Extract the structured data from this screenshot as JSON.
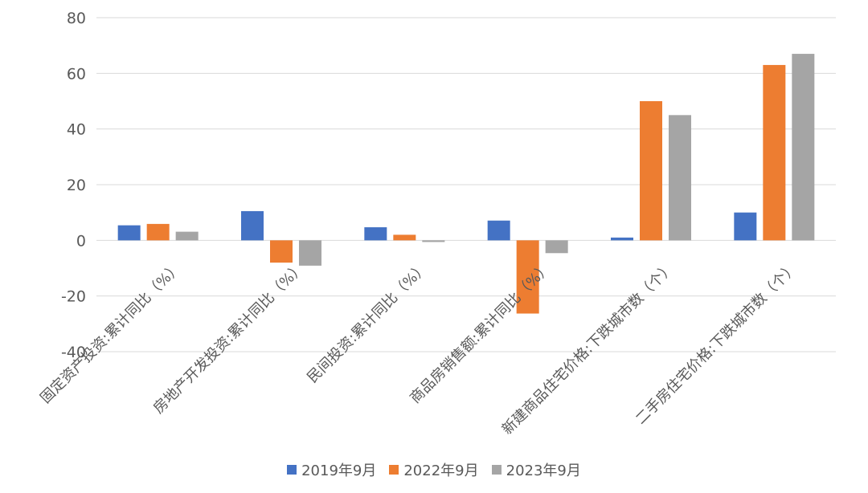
{
  "chart_data": {
    "type": "bar",
    "title": "",
    "xlabel": "",
    "ylabel": "",
    "ylim": [
      -40,
      80
    ],
    "yticks": [
      -40,
      -20,
      0,
      20,
      40,
      60,
      80
    ],
    "ytick_labels": [
      "-40",
      "-20",
      "0",
      "20",
      "40",
      "60",
      "80"
    ],
    "grid": true,
    "legend_position": "bottom",
    "categories": [
      "固定资产投资:累计同比（%）",
      "房地产开发投资:累计同比（%）",
      "民间投资:累计同比（%）",
      "商品房销售额:累计同比（%）",
      "新建商品住宅价格:下跌城市数（个）",
      "二手房住宅价格:下跌城市数（个）"
    ],
    "series": [
      {
        "name": "2019年9月",
        "color": "#4472C4",
        "values": [
          5.4,
          10.5,
          4.7,
          7.1,
          1,
          10
        ]
      },
      {
        "name": "2022年9月",
        "color": "#ED7D31",
        "values": [
          5.9,
          -8.0,
          2.0,
          -26.3,
          50,
          63
        ]
      },
      {
        "name": "2023年9月",
        "color": "#A5A5A5",
        "values": [
          3.1,
          -9.1,
          -0.6,
          -4.6,
          45,
          67
        ]
      }
    ]
  }
}
